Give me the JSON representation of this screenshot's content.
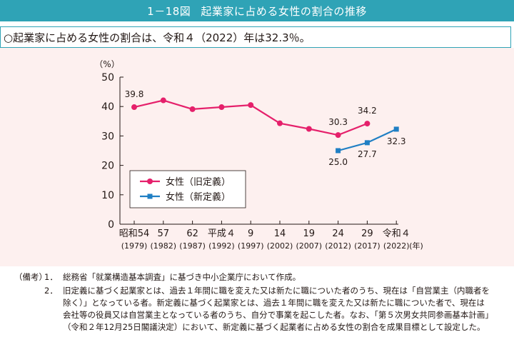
{
  "header": {
    "figure_number": "1－18図",
    "title": "起業家に占める女性の割合の推移"
  },
  "summary": "○起業家に占める女性の割合は、令和４（2022）年は32.3％。",
  "chart_data": {
    "type": "line",
    "y_unit_label": "（%）",
    "x_unit_label": "(年)",
    "ylim": [
      0,
      50
    ],
    "yticks": [
      0,
      10,
      20,
      30,
      40,
      50
    ],
    "categories": [
      {
        "era": "昭和54",
        "year": "(1979)"
      },
      {
        "era": "57",
        "year": "(1982)"
      },
      {
        "era": "62",
        "year": "(1987)"
      },
      {
        "era": "平成４",
        "year": "(1992)"
      },
      {
        "era": "9",
        "year": "(1997)"
      },
      {
        "era": "14",
        "year": "(2002)"
      },
      {
        "era": "19",
        "year": "(2007)"
      },
      {
        "era": "24",
        "year": "(2012)"
      },
      {
        "era": "29",
        "year": "(2017)"
      },
      {
        "era": "令和４",
        "year": "(2022)"
      }
    ],
    "series": [
      {
        "name": "女性（旧定義）",
        "color": "#e5206b",
        "marker": "circle",
        "values": [
          39.8,
          42.1,
          39.1,
          39.8,
          40.5,
          34.3,
          32.4,
          30.3,
          34.2,
          null
        ],
        "labels": [
          "39.8",
          null,
          null,
          null,
          null,
          null,
          null,
          "30.3",
          "34.2",
          null
        ]
      },
      {
        "name": "女性（新定義）",
        "color": "#1f7fc4",
        "marker": "square",
        "values": [
          null,
          null,
          null,
          null,
          null,
          null,
          null,
          25.0,
          27.7,
          32.3
        ],
        "labels": [
          null,
          null,
          null,
          null,
          null,
          null,
          null,
          "25.0",
          "27.7",
          "32.3"
        ]
      }
    ],
    "legend_position": "lower-left",
    "grid": false
  },
  "notes": {
    "head": "（備考）",
    "items": [
      {
        "num": "1．",
        "text": "総務省「就業構造基本調査」に基づき中小企業庁において作成。"
      },
      {
        "num": "2．",
        "text": "旧定義に基づく起業家とは、過去１年間に職を変えた又は新たに職についた者のうち、現在は「自営業主（内職者を除く）」となっている者。新定義に基づく起業家とは、過去１年間に職を変えた又は新たに職についた者で、現在は会社等の役員又は自営業主となっている者のうち、自分で事業を起こした者。なお、「第５次男女共同参画基本計画」（令和２年12月25日閣議決定）において、新定義に基づく起業者に占める女性の割合を成果目標として設定した。"
      }
    ]
  }
}
